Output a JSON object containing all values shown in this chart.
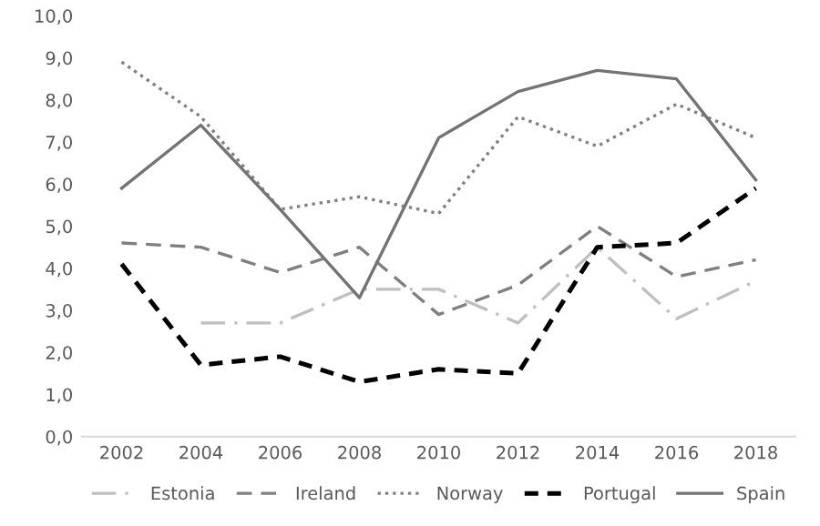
{
  "chart_data": {
    "type": "line",
    "categories": [
      "2002",
      "2004",
      "2006",
      "2008",
      "2010",
      "2012",
      "2014",
      "2016",
      "2018"
    ],
    "ylim": [
      0,
      10
    ],
    "yticks": [
      {
        "value": 0,
        "label": "0,0"
      },
      {
        "value": 1,
        "label": "1,0"
      },
      {
        "value": 2,
        "label": "2,0"
      },
      {
        "value": 3,
        "label": "3,0"
      },
      {
        "value": 4,
        "label": "4,0"
      },
      {
        "value": 5,
        "label": "5,0"
      },
      {
        "value": 6,
        "label": "6,0"
      },
      {
        "value": 7,
        "label": "7,0"
      },
      {
        "value": 8,
        "label": "8,0"
      },
      {
        "value": 9,
        "label": "9,0"
      },
      {
        "value": 10,
        "label": "10,0"
      }
    ],
    "grid": false,
    "legend": "bottom",
    "marker": "none",
    "series": [
      {
        "name": "Estonia",
        "color": "#bfbfbf",
        "line_style": "dashdot",
        "values": [
          null,
          2.7,
          2.7,
          3.5,
          3.5,
          2.7,
          4.5,
          2.8,
          3.7
        ]
      },
      {
        "name": "Ireland",
        "color": "#7f7f7f",
        "line_style": "dashed",
        "values": [
          4.6,
          4.5,
          3.9,
          4.5,
          2.9,
          3.6,
          5.0,
          3.8,
          4.2
        ]
      },
      {
        "name": "Norway",
        "color": "#808080",
        "line_style": "dotted",
        "values": [
          8.9,
          7.6,
          5.4,
          5.7,
          5.3,
          7.6,
          6.9,
          7.9,
          7.1
        ]
      },
      {
        "name": "Portugal",
        "color": "#000000",
        "line_style": "densedash",
        "values": [
          4.1,
          1.7,
          1.9,
          1.3,
          1.6,
          1.5,
          4.5,
          4.6,
          5.9
        ]
      },
      {
        "name": "Spain",
        "color": "#737373",
        "line_style": "solid",
        "values": [
          5.9,
          7.4,
          5.4,
          3.3,
          7.1,
          8.2,
          8.7,
          8.5,
          6.1
        ]
      }
    ]
  }
}
